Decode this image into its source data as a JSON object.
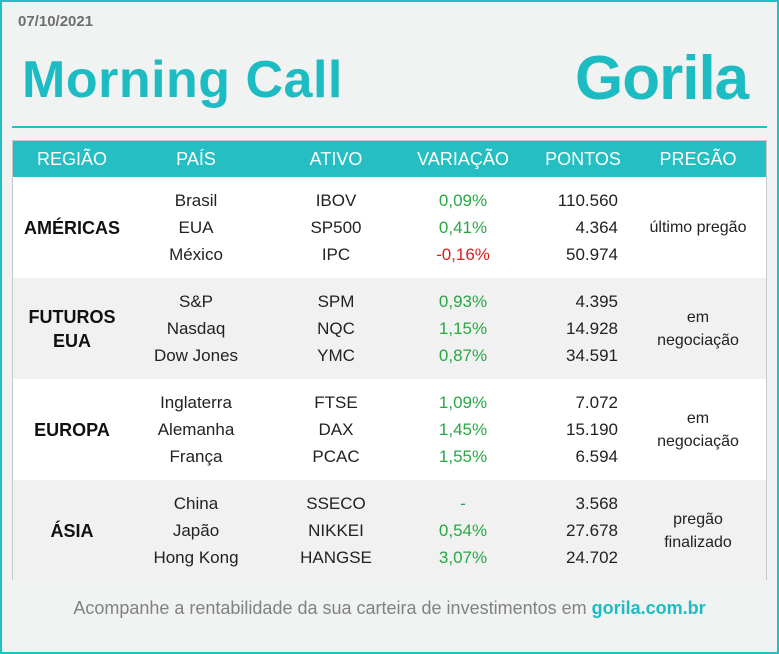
{
  "header": {
    "date": "07/10/2021",
    "title": "Morning Call",
    "logo_text": "Gorila"
  },
  "table": {
    "columns": [
      "REGIÃO",
      "PAÍS",
      "ATIVO",
      "VARIAÇÃO",
      "PONTOS",
      "PREGÃO"
    ],
    "groups": [
      {
        "region": "AMÉRICAS",
        "session": "último pregão",
        "rows": [
          {
            "country": "Brasil",
            "asset": "IBOV",
            "change": "0,09%",
            "points": "110.560"
          },
          {
            "country": "EUA",
            "asset": "SP500",
            "change": "0,41%",
            "points": "4.364"
          },
          {
            "country": "México",
            "asset": "IPC",
            "change": "-0,16%",
            "points": "50.974"
          }
        ]
      },
      {
        "region": "FUTUROS EUA",
        "session": "em negociação",
        "rows": [
          {
            "country": "S&P",
            "asset": "SPM",
            "change": "0,93%",
            "points": "4.395"
          },
          {
            "country": "Nasdaq",
            "asset": "NQC",
            "change": "1,15%",
            "points": "14.928"
          },
          {
            "country": "Dow Jones",
            "asset": "YMC",
            "change": "0,87%",
            "points": "34.591"
          }
        ]
      },
      {
        "region": "EUROPA",
        "session": "em negociação",
        "rows": [
          {
            "country": "Inglaterra",
            "asset": "FTSE",
            "change": "1,09%",
            "points": "7.072"
          },
          {
            "country": "Alemanha",
            "asset": "DAX",
            "change": "1,45%",
            "points": "15.190"
          },
          {
            "country": "França",
            "asset": "PCAC",
            "change": "1,55%",
            "points": "6.594"
          }
        ]
      },
      {
        "region": "ÁSIA",
        "session": "pregão finalizado",
        "rows": [
          {
            "country": "China",
            "asset": "SSECO",
            "change": "-",
            "points": "3.568"
          },
          {
            "country": "Japão",
            "asset": "NIKKEI",
            "change": "0,54%",
            "points": "27.678"
          },
          {
            "country": "Hong Kong",
            "asset": "HANGSE",
            "change": "3,07%",
            "points": "24.702"
          }
        ]
      }
    ]
  },
  "footer": {
    "text": "Acompanhe a rentabilidade da sua carteira de investimentos em",
    "link": "gorila.com.br"
  },
  "colors": {
    "brand": "#1cbcc2",
    "positive": "#27a844",
    "negative": "#d9211e"
  }
}
